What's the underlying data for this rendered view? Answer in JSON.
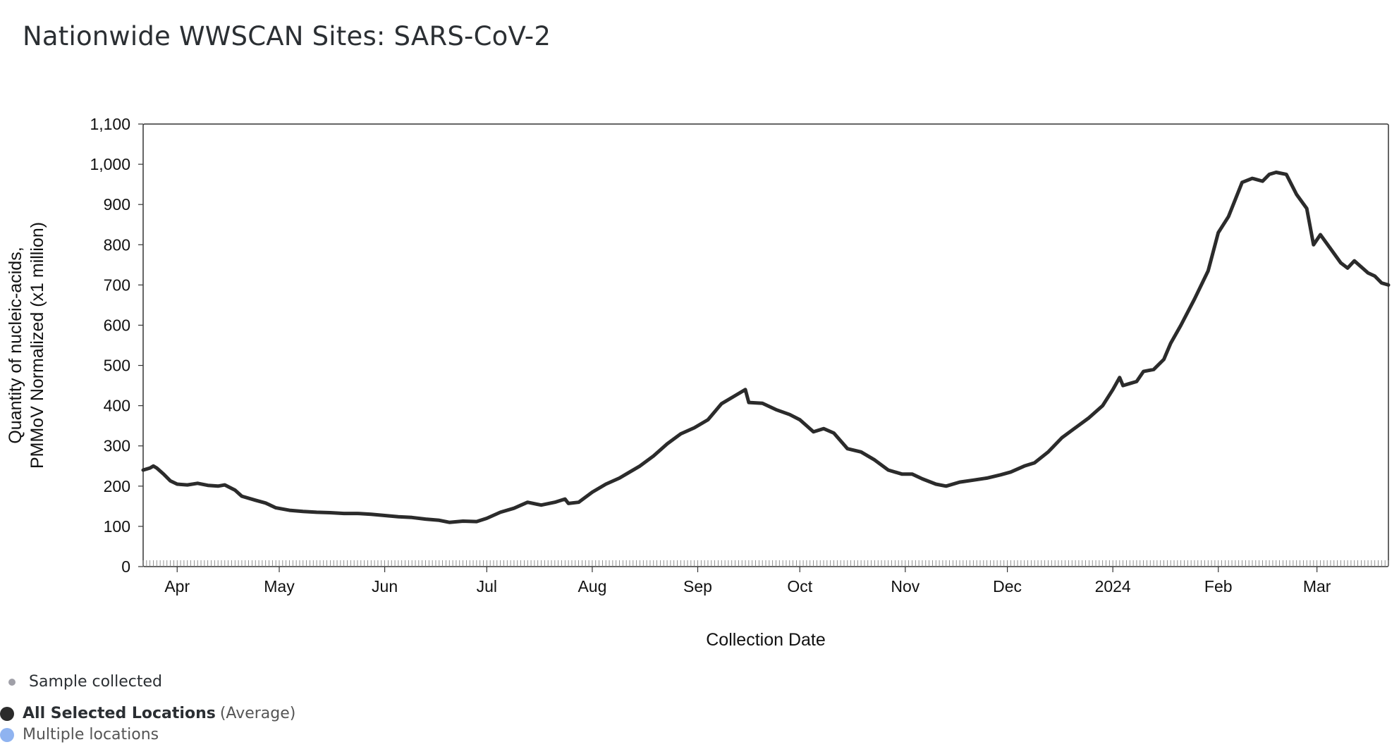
{
  "page": {
    "title": "Nationwide WWSCAN Sites: SARS-CoV-2"
  },
  "legend": {
    "sample": {
      "label": "Sample collected",
      "color": "#a0a0a8",
      "icon": "small-dot-icon"
    },
    "average": {
      "label_bold": "All Selected Locations",
      "label_rest": "(Average)",
      "color": "#2b2b2b",
      "icon": "dark-dot-icon"
    },
    "multiple": {
      "label": "Multiple locations",
      "color": "#8fb3f0",
      "icon": "blue-dot-icon"
    }
  },
  "chart_data": {
    "type": "line",
    "xlabel": "Collection Date",
    "ylabel_line1": "Quantity of nucleic-acids,",
    "ylabel_line2": "PMMoV Normalized (x1 million)",
    "ylim": [
      0,
      1100
    ],
    "yticks": [
      0,
      100,
      200,
      300,
      400,
      500,
      600,
      700,
      800,
      900,
      1000,
      1100
    ],
    "ytick_labels": [
      "0",
      "100",
      "200",
      "300",
      "400",
      "500",
      "600",
      "700",
      "800",
      "900",
      "1,000",
      "1,100"
    ],
    "xlim": [
      "2023-03-22",
      "2024-03-22"
    ],
    "xticks": [
      {
        "date": "2023-04-01",
        "label": "Apr"
      },
      {
        "date": "2023-05-01",
        "label": "May"
      },
      {
        "date": "2023-06-01",
        "label": "Jun"
      },
      {
        "date": "2023-07-01",
        "label": "Jul"
      },
      {
        "date": "2023-08-01",
        "label": "Aug"
      },
      {
        "date": "2023-09-01",
        "label": "Sep"
      },
      {
        "date": "2023-10-01",
        "label": "Oct"
      },
      {
        "date": "2023-11-01",
        "label": "Nov"
      },
      {
        "date": "2023-12-01",
        "label": "Dec"
      },
      {
        "date": "2024-01-01",
        "label": "2024"
      },
      {
        "date": "2024-02-01",
        "label": "Feb"
      },
      {
        "date": "2024-03-01",
        "label": "Mar"
      }
    ],
    "grid": false,
    "series": [
      {
        "name": "All Selected Locations",
        "color": "#2b2b2b",
        "points": [
          [
            "2023-03-22",
            240
          ],
          [
            "2023-03-24",
            245
          ],
          [
            "2023-03-25",
            250
          ],
          [
            "2023-03-26",
            245
          ],
          [
            "2023-03-28",
            230
          ],
          [
            "2023-03-30",
            213
          ],
          [
            "2023-04-01",
            205
          ],
          [
            "2023-04-04",
            203
          ],
          [
            "2023-04-07",
            207
          ],
          [
            "2023-04-10",
            202
          ],
          [
            "2023-04-13",
            200
          ],
          [
            "2023-04-15",
            203
          ],
          [
            "2023-04-18",
            190
          ],
          [
            "2023-04-20",
            175
          ],
          [
            "2023-04-24",
            165
          ],
          [
            "2023-04-27",
            158
          ],
          [
            "2023-04-30",
            146
          ],
          [
            "2023-05-04",
            140
          ],
          [
            "2023-05-08",
            137
          ],
          [
            "2023-05-12",
            135
          ],
          [
            "2023-05-16",
            134
          ],
          [
            "2023-05-20",
            132
          ],
          [
            "2023-05-24",
            132
          ],
          [
            "2023-05-28",
            130
          ],
          [
            "2023-06-01",
            127
          ],
          [
            "2023-06-05",
            124
          ],
          [
            "2023-06-09",
            122
          ],
          [
            "2023-06-13",
            118
          ],
          [
            "2023-06-17",
            115
          ],
          [
            "2023-06-20",
            110
          ],
          [
            "2023-06-24",
            113
          ],
          [
            "2023-06-28",
            112
          ],
          [
            "2023-07-01",
            120
          ],
          [
            "2023-07-05",
            135
          ],
          [
            "2023-07-09",
            145
          ],
          [
            "2023-07-13",
            160
          ],
          [
            "2023-07-17",
            153
          ],
          [
            "2023-07-21",
            160
          ],
          [
            "2023-07-24",
            168
          ],
          [
            "2023-07-25",
            157
          ],
          [
            "2023-07-28",
            160
          ],
          [
            "2023-08-01",
            185
          ],
          [
            "2023-08-05",
            205
          ],
          [
            "2023-08-09",
            220
          ],
          [
            "2023-08-12",
            235
          ],
          [
            "2023-08-15",
            250
          ],
          [
            "2023-08-19",
            275
          ],
          [
            "2023-08-23",
            305
          ],
          [
            "2023-08-27",
            330
          ],
          [
            "2023-08-31",
            345
          ],
          [
            "2023-09-04",
            365
          ],
          [
            "2023-09-08",
            405
          ],
          [
            "2023-09-12",
            425
          ],
          [
            "2023-09-15",
            440
          ],
          [
            "2023-09-16",
            408
          ],
          [
            "2023-09-20",
            406
          ],
          [
            "2023-09-24",
            390
          ],
          [
            "2023-09-28",
            378
          ],
          [
            "2023-10-01",
            365
          ],
          [
            "2023-10-05",
            335
          ],
          [
            "2023-10-08",
            343
          ],
          [
            "2023-10-11",
            332
          ],
          [
            "2023-10-15",
            293
          ],
          [
            "2023-10-19",
            285
          ],
          [
            "2023-10-23",
            265
          ],
          [
            "2023-10-27",
            240
          ],
          [
            "2023-10-31",
            230
          ],
          [
            "2023-11-03",
            230
          ],
          [
            "2023-11-06",
            218
          ],
          [
            "2023-11-10",
            205
          ],
          [
            "2023-11-13",
            200
          ],
          [
            "2023-11-17",
            210
          ],
          [
            "2023-11-21",
            215
          ],
          [
            "2023-11-25",
            220
          ],
          [
            "2023-11-29",
            228
          ],
          [
            "2023-12-02",
            235
          ],
          [
            "2023-12-06",
            250
          ],
          [
            "2023-12-09",
            258
          ],
          [
            "2023-12-13",
            285
          ],
          [
            "2023-12-17",
            320
          ],
          [
            "2023-12-21",
            345
          ],
          [
            "2023-12-25",
            370
          ],
          [
            "2023-12-29",
            400
          ],
          [
            "2024-01-01",
            440
          ],
          [
            "2024-01-03",
            470
          ],
          [
            "2024-01-04",
            450
          ],
          [
            "2024-01-06",
            455
          ],
          [
            "2024-01-08",
            460
          ],
          [
            "2024-01-10",
            485
          ],
          [
            "2024-01-13",
            490
          ],
          [
            "2024-01-16",
            515
          ],
          [
            "2024-01-18",
            555
          ],
          [
            "2024-01-21",
            600
          ],
          [
            "2024-01-25",
            665
          ],
          [
            "2024-01-29",
            735
          ],
          [
            "2024-02-01",
            830
          ],
          [
            "2024-02-04",
            870
          ],
          [
            "2024-02-08",
            955
          ],
          [
            "2024-02-11",
            965
          ],
          [
            "2024-02-14",
            958
          ],
          [
            "2024-02-16",
            975
          ],
          [
            "2024-02-18",
            980
          ],
          [
            "2024-02-21",
            975
          ],
          [
            "2024-02-24",
            925
          ],
          [
            "2024-02-27",
            890
          ],
          [
            "2024-02-29",
            800
          ],
          [
            "2024-03-02",
            825
          ],
          [
            "2024-03-05",
            790
          ],
          [
            "2024-03-08",
            755
          ],
          [
            "2024-03-10",
            742
          ],
          [
            "2024-03-12",
            760
          ],
          [
            "2024-03-14",
            745
          ],
          [
            "2024-03-16",
            730
          ],
          [
            "2024-03-18",
            722
          ],
          [
            "2024-03-20",
            705
          ],
          [
            "2024-03-22",
            700
          ]
        ]
      }
    ]
  }
}
